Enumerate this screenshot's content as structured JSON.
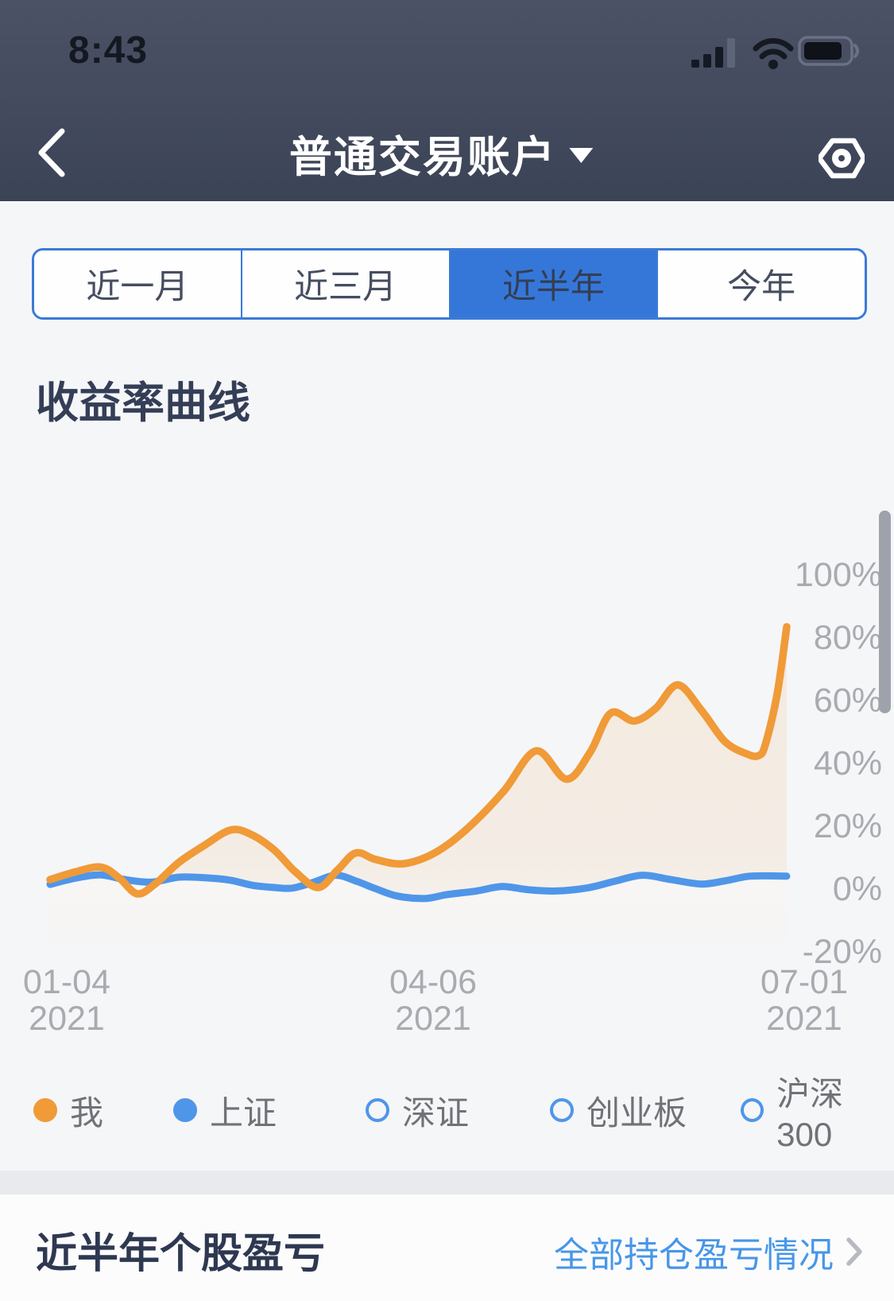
{
  "status_bar": {
    "time": "8:43",
    "icons": [
      "cellular-signal-icon",
      "wifi-icon",
      "battery-icon"
    ]
  },
  "nav": {
    "title": "普通交易账户",
    "back_icon": "chevron-left-icon",
    "settings_icon": "gear-icon",
    "dropdown_icon": "caret-down-icon"
  },
  "tabs": {
    "items": [
      {
        "label": "近一月",
        "selected": false
      },
      {
        "label": "近三月",
        "selected": false
      },
      {
        "label": "近半年",
        "selected": true
      },
      {
        "label": "今年",
        "selected": false
      }
    ]
  },
  "section": {
    "title": "收益率曲线"
  },
  "chart_data": {
    "type": "line",
    "title": "收益率曲线",
    "grid": false,
    "legend_position": "bottom",
    "ylim": [
      -20,
      100
    ],
    "y_unit": "%",
    "y_ticks": [
      100,
      80,
      60,
      40,
      20,
      0,
      -20
    ],
    "x_ticks": [
      {
        "date": "01-04",
        "year": "2021"
      },
      {
        "date": "04-06",
        "year": "2021"
      },
      {
        "date": "07-01",
        "year": "2021"
      }
    ],
    "series": [
      {
        "name": "我",
        "color": "#F09A38",
        "filled_area": true,
        "visible": true,
        "points": [
          [
            0.0,
            3
          ],
          [
            0.035,
            5.5
          ],
          [
            0.069,
            7
          ],
          [
            0.094,
            3.5
          ],
          [
            0.118,
            -1.5
          ],
          [
            0.142,
            1.5
          ],
          [
            0.175,
            8.5
          ],
          [
            0.21,
            14
          ],
          [
            0.245,
            18.8
          ],
          [
            0.272,
            17.5
          ],
          [
            0.304,
            12.5
          ],
          [
            0.333,
            5.5
          ],
          [
            0.364,
            0.5
          ],
          [
            0.39,
            6
          ],
          [
            0.415,
            11.5
          ],
          [
            0.441,
            9.5
          ],
          [
            0.475,
            8
          ],
          [
            0.509,
            10
          ],
          [
            0.542,
            14.5
          ],
          [
            0.579,
            22
          ],
          [
            0.617,
            31.5
          ],
          [
            0.66,
            44
          ],
          [
            0.701,
            35
          ],
          [
            0.733,
            43.5
          ],
          [
            0.761,
            56
          ],
          [
            0.793,
            53.5
          ],
          [
            0.822,
            57.5
          ],
          [
            0.852,
            65
          ],
          [
            0.884,
            57
          ],
          [
            0.916,
            47
          ],
          [
            0.946,
            43
          ],
          [
            0.962,
            42.5
          ],
          [
            0.971,
            46
          ],
          [
            0.987,
            62
          ],
          [
            1.0,
            83.5
          ]
        ]
      },
      {
        "name": "上证",
        "color": "#4F96E9",
        "filled_area": true,
        "visible": true,
        "points": [
          [
            0.0,
            1.5
          ],
          [
            0.035,
            3.5
          ],
          [
            0.069,
            4.5
          ],
          [
            0.102,
            3.0
          ],
          [
            0.137,
            2.2
          ],
          [
            0.175,
            3.8
          ],
          [
            0.21,
            3.6
          ],
          [
            0.245,
            2.8
          ],
          [
            0.275,
            1.2
          ],
          [
            0.304,
            0.5
          ],
          [
            0.329,
            0.3
          ],
          [
            0.358,
            2.2
          ],
          [
            0.388,
            4.4
          ],
          [
            0.417,
            2.4
          ],
          [
            0.441,
            0.2
          ],
          [
            0.471,
            -2.2
          ],
          [
            0.509,
            -3.0
          ],
          [
            0.538,
            -1.8
          ],
          [
            0.579,
            -0.6
          ],
          [
            0.614,
            0.8
          ],
          [
            0.649,
            -0.2
          ],
          [
            0.687,
            -0.6
          ],
          [
            0.73,
            0.4
          ],
          [
            0.765,
            2.4
          ],
          [
            0.804,
            4.4
          ],
          [
            0.843,
            3.0
          ],
          [
            0.884,
            1.6
          ],
          [
            0.916,
            2.6
          ],
          [
            0.946,
            4.0
          ],
          [
            0.973,
            4.2
          ],
          [
            1.0,
            4.1
          ]
        ]
      },
      {
        "name": "深证",
        "color": "#4F96E9",
        "visible": false
      },
      {
        "name": "创业板",
        "color": "#4F96E9",
        "visible": false
      },
      {
        "name": "沪深300",
        "color": "#4F96E9",
        "visible": false
      }
    ]
  },
  "legend": {
    "items": [
      {
        "label": "我",
        "color": "#F09A38",
        "filled": true
      },
      {
        "label": "上证",
        "color": "#4F96E9",
        "filled": true
      },
      {
        "label": "深证",
        "color": "#4F96E9",
        "filled": false
      },
      {
        "label": "创业板",
        "color": "#4F96E9",
        "filled": false
      },
      {
        "label": "沪深300",
        "color": "#4F96E9",
        "filled": false
      }
    ]
  },
  "footer": {
    "title": "近半年个股盈亏",
    "link_label": "全部持仓盈亏情况",
    "chevron_icon": "chevron-right-icon"
  },
  "colors": {
    "header_bg": "#414A5D",
    "accent_blue": "#3577D9",
    "tab_border": "#3B7AD7",
    "line_me": "#F09A38",
    "line_index": "#4F96E9",
    "axis_text": "#A8ABAF",
    "legend_text": "#6F7377",
    "link_blue": "#4796E8",
    "page_bg": "#F5F6F8"
  }
}
